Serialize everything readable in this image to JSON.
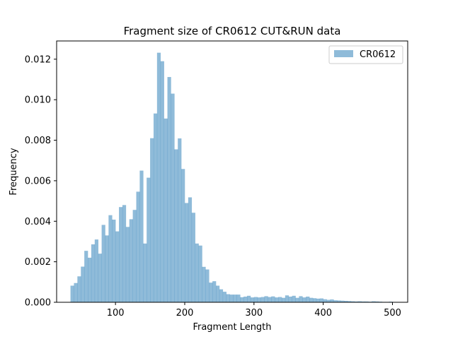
{
  "chart_data": {
    "type": "bar",
    "title": "Fragment size of CR0612 CUT&RUN data",
    "xlabel": "Fragment Length",
    "ylabel": "Frequency",
    "xlim": [
      15,
      522
    ],
    "ylim": [
      0,
      0.0129
    ],
    "xticks": [
      100,
      200,
      300,
      400,
      500
    ],
    "yticks": [
      0.0,
      0.002,
      0.004,
      0.006,
      0.008,
      0.01,
      0.012
    ],
    "ytick_labels": [
      "0.000",
      "0.002",
      "0.004",
      "0.006",
      "0.008",
      "0.010",
      "0.012"
    ],
    "legend": {
      "entries": [
        "CR0612"
      ],
      "placement": "top-right"
    },
    "grid": false,
    "series": [
      {
        "name": "CR0612",
        "color": "#1f77b4",
        "alpha": 0.5,
        "bin_edges": [
          35,
          40,
          45,
          50,
          55,
          60,
          65,
          70,
          75,
          80,
          85,
          90,
          95,
          100,
          105,
          110,
          115,
          120,
          125,
          130,
          135,
          140,
          145,
          150,
          155,
          160,
          165,
          170,
          175,
          180,
          185,
          190,
          195,
          200,
          205,
          210,
          215,
          220,
          225,
          230,
          235,
          240,
          245,
          250,
          255,
          260,
          265,
          270,
          275,
          280,
          285,
          290,
          295,
          300,
          305,
          310,
          315,
          320,
          325,
          330,
          335,
          340,
          345,
          350,
          355,
          360,
          365,
          370,
          375,
          380,
          385,
          390,
          395,
          400,
          405,
          410,
          415,
          420,
          425,
          430,
          435,
          440,
          445,
          450,
          455,
          460,
          465,
          470,
          475,
          480,
          485,
          490,
          495,
          500
        ],
        "values": [
          0.00082,
          0.00095,
          0.00128,
          0.00176,
          0.00254,
          0.0022,
          0.00286,
          0.0031,
          0.0024,
          0.00382,
          0.0033,
          0.0043,
          0.00408,
          0.0035,
          0.0047,
          0.0048,
          0.00372,
          0.0041,
          0.00456,
          0.00546,
          0.0065,
          0.0029,
          0.00615,
          0.0081,
          0.00932,
          0.01232,
          0.0119,
          0.00907,
          0.01112,
          0.0103,
          0.00755,
          0.00809,
          0.00658,
          0.0049,
          0.00518,
          0.00442,
          0.0029,
          0.0028,
          0.00175,
          0.00162,
          0.00097,
          0.00104,
          0.00082,
          0.00064,
          0.00052,
          0.0004,
          0.00038,
          0.00038,
          0.00038,
          0.00025,
          0.00028,
          0.00032,
          0.00024,
          0.00026,
          0.00024,
          0.00026,
          0.0003,
          0.00026,
          0.00029,
          0.00024,
          0.00026,
          0.00022,
          0.00034,
          0.00028,
          0.00032,
          0.00022,
          0.0003,
          0.00024,
          0.00028,
          0.00022,
          0.0002,
          0.00018,
          0.00019,
          0.00015,
          0.00012,
          0.00014,
          0.0001,
          9e-05,
          8e-05,
          7e-05,
          6e-05,
          5e-05,
          4e-05,
          5e-05,
          4e-05,
          4e-05,
          3e-05,
          5e-05,
          4e-05,
          3e-05,
          2e-05,
          2e-05,
          3e-05
        ]
      }
    ]
  }
}
